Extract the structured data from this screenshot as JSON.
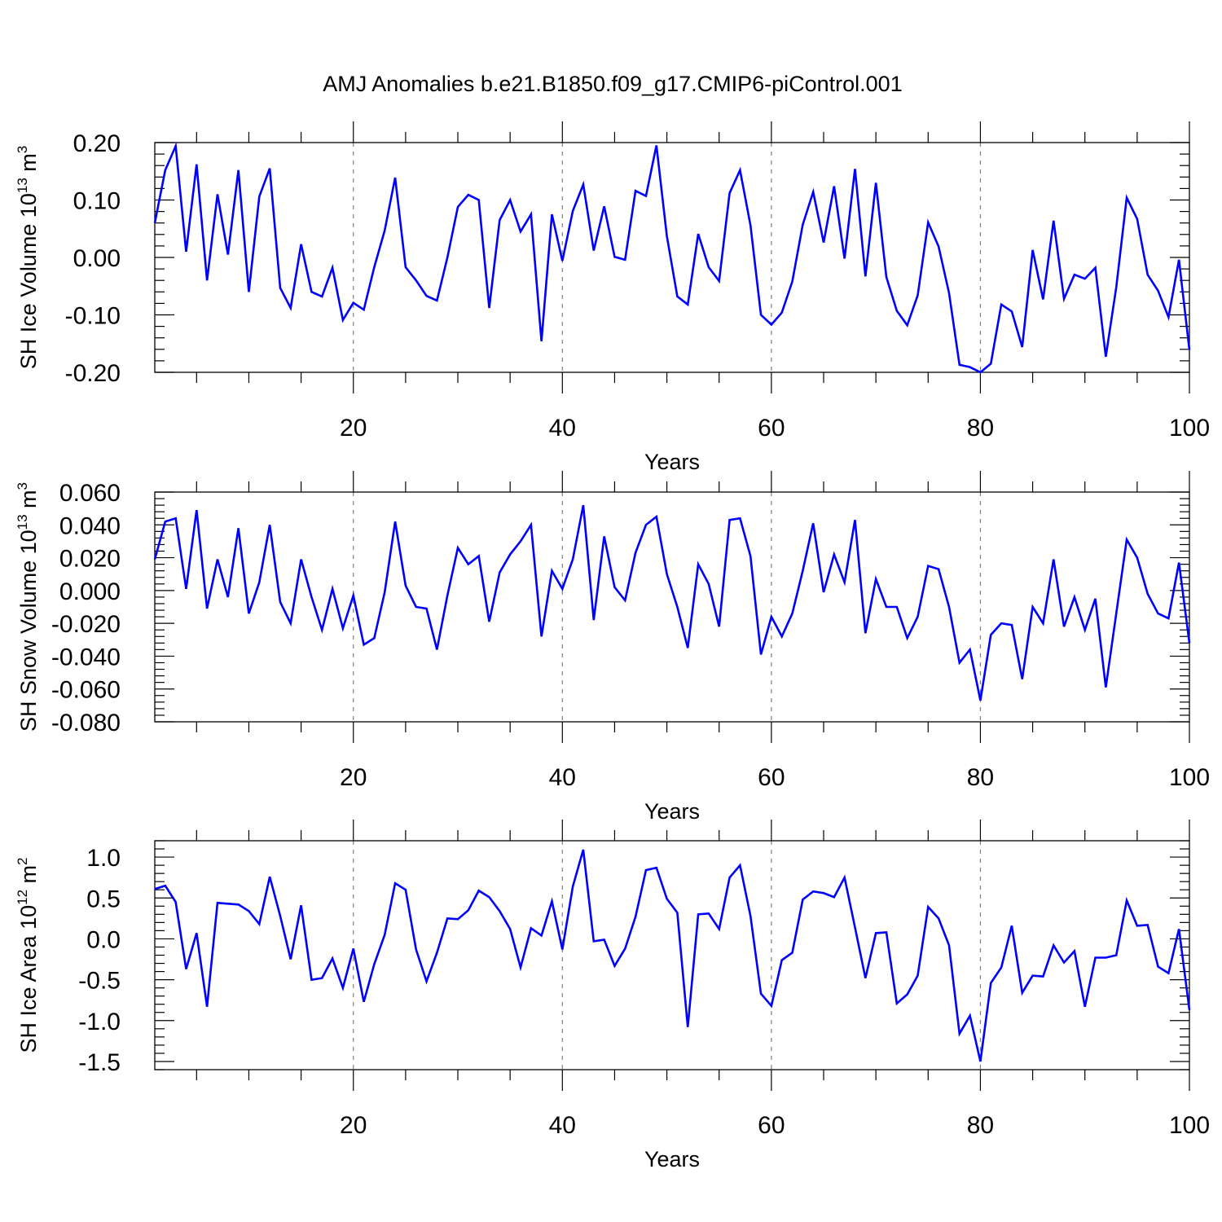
{
  "title": "AMJ Anomalies b.e21.B1850.f09_g17.CMIP6-piControl.001",
  "colors": {
    "line": "#0000ff",
    "axis": "#000000",
    "grid": "#7f7f7f"
  },
  "chart_data": [
    {
      "type": "line",
      "ylabel_main": "SH Ice Volume 10",
      "ylabel_exp": "13",
      "ylabel_unit": " m",
      "ylabel_unit_exp": "3",
      "xlabel": "Years",
      "xlim": [
        1,
        100
      ],
      "ylim": [
        -0.2,
        0.2
      ],
      "xticks": [
        20,
        40,
        60,
        80,
        100
      ],
      "xtick_labels": [
        "20",
        "40",
        "60",
        "80",
        "100"
      ],
      "yticks": [
        0.2,
        0.1,
        0.0,
        -0.1,
        -0.2
      ],
      "ytick_labels": [
        "0.20",
        "0.10",
        "0.00",
        "-0.10",
        "-0.20"
      ],
      "grid": "dashed vertical at x = 20, 40, 60, 80",
      "series": [
        {
          "x": [
            1,
            2,
            3,
            4,
            5,
            6,
            7,
            8,
            9,
            10,
            11,
            12,
            13,
            14,
            15,
            16,
            17,
            18,
            19,
            20,
            21,
            22,
            23,
            24,
            25,
            26,
            27,
            28,
            29,
            30,
            31,
            32,
            33,
            34,
            35,
            36,
            37,
            38,
            39,
            40,
            41,
            42,
            43,
            44,
            45,
            46,
            47,
            48,
            49,
            50,
            51,
            52,
            53,
            54,
            55,
            56,
            57,
            58,
            59,
            60,
            61,
            62,
            63,
            64,
            65,
            66,
            67,
            68,
            69,
            70,
            71,
            72,
            73,
            74,
            75,
            76,
            77,
            78,
            79,
            80,
            81,
            82,
            83,
            84,
            85,
            86,
            87,
            88,
            89,
            90,
            91,
            92,
            93,
            94,
            95,
            96,
            97,
            98,
            99,
            100
          ],
          "y": [
            0.06,
            0.152,
            0.194,
            0.01,
            0.162,
            -0.04,
            0.11,
            0.005,
            0.152,
            -0.06,
            0.106,
            0.155,
            -0.053,
            -0.088,
            0.023,
            -0.06,
            -0.068,
            -0.018,
            -0.109,
            -0.079,
            -0.091,
            -0.017,
            0.047,
            0.139,
            -0.017,
            -0.04,
            -0.067,
            -0.075,
            0.0,
            0.088,
            0.109,
            0.1,
            -0.088,
            0.065,
            0.1,
            0.045,
            0.075,
            -0.146,
            0.075,
            -0.006,
            0.081,
            0.127,
            0.012,
            0.089,
            0.001,
            -0.004,
            0.116,
            0.107,
            0.195,
            0.037,
            -0.068,
            -0.082,
            0.041,
            -0.017,
            -0.041,
            0.112,
            0.152,
            0.056,
            -0.1,
            -0.117,
            -0.096,
            -0.042,
            0.057,
            0.114,
            0.026,
            0.124,
            -0.002,
            0.154,
            -0.033,
            0.13,
            -0.034,
            -0.093,
            -0.118,
            -0.066,
            0.061,
            0.019,
            -0.062,
            -0.187,
            -0.191,
            -0.2,
            -0.185,
            -0.082,
            -0.094,
            -0.156,
            0.013,
            -0.073,
            0.064,
            -0.072,
            -0.03,
            -0.037,
            -0.018,
            -0.173,
            -0.052,
            0.104,
            0.067,
            -0.03,
            -0.058,
            -0.104,
            -0.004,
            -0.161
          ]
        }
      ]
    },
    {
      "type": "line",
      "ylabel_main": "SH Snow Volume 10",
      "ylabel_exp": "13",
      "ylabel_unit": " m",
      "ylabel_unit_exp": "3",
      "xlabel": "Years",
      "xlim": [
        1,
        100
      ],
      "ylim": [
        -0.08,
        0.06
      ],
      "xticks": [
        20,
        40,
        60,
        80,
        100
      ],
      "xtick_labels": [
        "20",
        "40",
        "60",
        "80",
        "100"
      ],
      "yticks": [
        0.06,
        0.04,
        0.02,
        0.0,
        -0.02,
        -0.04,
        -0.06,
        -0.08
      ],
      "ytick_labels": [
        "0.060",
        "0.040",
        "0.020",
        "0.000",
        "-0.020",
        "-0.040",
        "-0.060",
        "-0.080"
      ],
      "grid": "dashed vertical at x = 20, 40, 60, 80",
      "series": [
        {
          "x": [
            1,
            2,
            3,
            4,
            5,
            6,
            7,
            8,
            9,
            10,
            11,
            12,
            13,
            14,
            15,
            16,
            17,
            18,
            19,
            20,
            21,
            22,
            23,
            24,
            25,
            26,
            27,
            28,
            29,
            30,
            31,
            32,
            33,
            34,
            35,
            36,
            37,
            38,
            39,
            40,
            41,
            42,
            43,
            44,
            45,
            46,
            47,
            48,
            49,
            50,
            51,
            52,
            53,
            54,
            55,
            56,
            57,
            58,
            59,
            60,
            61,
            62,
            63,
            64,
            65,
            66,
            67,
            68,
            69,
            70,
            71,
            72,
            73,
            74,
            75,
            76,
            77,
            78,
            79,
            80,
            81,
            82,
            83,
            84,
            85,
            86,
            87,
            88,
            89,
            90,
            91,
            92,
            93,
            94,
            95,
            96,
            97,
            98,
            99,
            100
          ],
          "y": [
            0.019,
            0.042,
            0.044,
            0.001,
            0.049,
            -0.011,
            0.019,
            -0.004,
            0.038,
            -0.014,
            0.005,
            0.04,
            -0.007,
            -0.02,
            0.019,
            -0.004,
            -0.024,
            0.001,
            -0.023,
            -0.003,
            -0.033,
            -0.029,
            -0.001,
            0.042,
            0.003,
            -0.01,
            -0.011,
            -0.036,
            -0.003,
            0.026,
            0.016,
            0.021,
            -0.019,
            0.011,
            0.022,
            0.03,
            0.04,
            -0.028,
            0.012,
            0.001,
            0.019,
            0.052,
            -0.018,
            0.033,
            0.002,
            -0.006,
            0.023,
            0.04,
            0.045,
            0.01,
            -0.01,
            -0.035,
            0.016,
            0.004,
            -0.022,
            0.043,
            0.044,
            0.021,
            -0.039,
            -0.016,
            -0.028,
            -0.014,
            0.012,
            0.041,
            -0.001,
            0.022,
            0.005,
            0.043,
            -0.026,
            0.007,
            -0.01,
            -0.01,
            -0.029,
            -0.016,
            0.015,
            0.013,
            -0.01,
            -0.044,
            -0.036,
            -0.067,
            -0.027,
            -0.02,
            -0.021,
            -0.054,
            -0.01,
            -0.02,
            0.019,
            -0.022,
            -0.004,
            -0.024,
            -0.005,
            -0.059,
            -0.014,
            0.031,
            0.02,
            -0.002,
            -0.014,
            -0.017,
            0.017,
            -0.032
          ]
        }
      ]
    },
    {
      "type": "line",
      "ylabel_main": "SH Ice Area 10",
      "ylabel_exp": "12",
      "ylabel_unit": " m",
      "ylabel_unit_exp": "2",
      "xlabel": "Years",
      "xlim": [
        1,
        100
      ],
      "ylim": [
        -1.6,
        1.2
      ],
      "xticks": [
        20,
        40,
        60,
        80,
        100
      ],
      "xtick_labels": [
        "20",
        "40",
        "60",
        "80",
        "100"
      ],
      "yticks": [
        1.0,
        0.5,
        0.0,
        -0.5,
        -1.0,
        -1.5
      ],
      "ytick_labels": [
        "1.0",
        "0.5",
        "0.0",
        "-0.5",
        "-1.0",
        "-1.5"
      ],
      "grid": "dashed vertical at x = 20, 40, 60, 80",
      "series": [
        {
          "x": [
            1,
            2,
            3,
            4,
            5,
            6,
            7,
            8,
            9,
            10,
            11,
            12,
            13,
            14,
            15,
            16,
            17,
            18,
            19,
            20,
            21,
            22,
            23,
            24,
            25,
            26,
            27,
            28,
            29,
            30,
            31,
            32,
            33,
            34,
            35,
            36,
            37,
            38,
            39,
            40,
            41,
            42,
            43,
            44,
            45,
            46,
            47,
            48,
            49,
            50,
            51,
            52,
            53,
            54,
            55,
            56,
            57,
            58,
            59,
            60,
            61,
            62,
            63,
            64,
            65,
            66,
            67,
            68,
            69,
            70,
            71,
            72,
            73,
            74,
            75,
            76,
            77,
            78,
            79,
            80,
            81,
            82,
            83,
            84,
            85,
            86,
            87,
            88,
            89,
            90,
            91,
            92,
            93,
            94,
            95,
            96,
            97,
            98,
            99,
            100
          ],
          "y": [
            0.61,
            0.65,
            0.45,
            -0.37,
            0.07,
            -0.83,
            0.44,
            0.43,
            0.42,
            0.34,
            0.18,
            0.76,
            0.28,
            -0.25,
            0.41,
            -0.5,
            -0.48,
            -0.24,
            -0.6,
            -0.12,
            -0.77,
            -0.31,
            0.05,
            0.68,
            0.6,
            -0.13,
            -0.52,
            -0.17,
            0.25,
            0.24,
            0.35,
            0.59,
            0.51,
            0.34,
            0.12,
            -0.35,
            0.13,
            0.04,
            0.46,
            -0.13,
            0.64,
            1.09,
            -0.03,
            -0.01,
            -0.33,
            -0.12,
            0.27,
            0.84,
            0.87,
            0.49,
            0.32,
            -1.08,
            0.3,
            0.31,
            0.12,
            0.75,
            0.9,
            0.28,
            -0.67,
            -0.82,
            -0.26,
            -0.17,
            0.48,
            0.58,
            0.56,
            0.51,
            0.75,
            0.14,
            -0.48,
            0.07,
            0.08,
            -0.79,
            -0.68,
            -0.45,
            0.39,
            0.25,
            -0.08,
            -1.16,
            -0.94,
            -1.5,
            -0.54,
            -0.35,
            0.16,
            -0.66,
            -0.45,
            -0.46,
            -0.08,
            -0.29,
            -0.15,
            -0.83,
            -0.23,
            -0.23,
            -0.2,
            0.47,
            0.16,
            0.17,
            -0.34,
            -0.42,
            0.12,
            -0.87
          ]
        }
      ]
    }
  ]
}
